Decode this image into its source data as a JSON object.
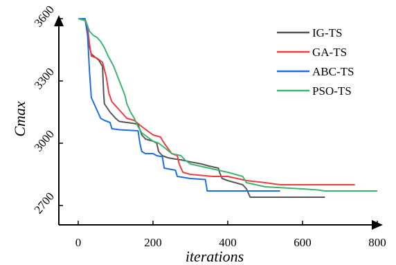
{
  "chart_data": {
    "type": "line",
    "xlabel": "iterations",
    "ylabel": "Cmax",
    "xlim": [
      0,
      800
    ],
    "ylim": [
      2700,
      3600
    ],
    "xticks": [
      0,
      200,
      400,
      600,
      800
    ],
    "yticks": [
      2700,
      3000,
      3300,
      3600
    ],
    "x_tick_labels": [
      "0",
      "200",
      "400",
      "600",
      "800"
    ],
    "y_tick_labels": [
      "2700",
      "3000",
      "3300",
      "3600"
    ],
    "grid": false,
    "legend_position": "top-right",
    "series": [
      {
        "name": "IG-TS",
        "color": "#555555",
        "points": [
          [
            0,
            3600
          ],
          [
            18,
            3600
          ],
          [
            25,
            3540
          ],
          [
            28,
            3480
          ],
          [
            35,
            3430
          ],
          [
            55,
            3400
          ],
          [
            65,
            3370
          ],
          [
            68,
            3240
          ],
          [
            70,
            3190
          ],
          [
            85,
            3150
          ],
          [
            100,
            3120
          ],
          [
            110,
            3105
          ],
          [
            130,
            3100
          ],
          [
            150,
            3095
          ],
          [
            160,
            3090
          ],
          [
            170,
            3040
          ],
          [
            180,
            3020
          ],
          [
            200,
            3010
          ],
          [
            210,
            3000
          ],
          [
            215,
            2960
          ],
          [
            225,
            2940
          ],
          [
            240,
            2930
          ],
          [
            255,
            2925
          ],
          [
            275,
            2920
          ],
          [
            300,
            2910
          ],
          [
            330,
            2900
          ],
          [
            350,
            2890
          ],
          [
            375,
            2880
          ],
          [
            378,
            2860
          ],
          [
            385,
            2830
          ],
          [
            400,
            2820
          ],
          [
            440,
            2800
          ],
          [
            450,
            2780
          ],
          [
            460,
            2740
          ],
          [
            660,
            2740
          ]
        ]
      },
      {
        "name": "GA-TS",
        "color": "#ee3b3b",
        "points": [
          [
            0,
            3600
          ],
          [
            18,
            3600
          ],
          [
            25,
            3560
          ],
          [
            30,
            3480
          ],
          [
            35,
            3420
          ],
          [
            50,
            3410
          ],
          [
            65,
            3390
          ],
          [
            75,
            3320
          ],
          [
            82,
            3240
          ],
          [
            90,
            3200
          ],
          [
            100,
            3180
          ],
          [
            110,
            3160
          ],
          [
            120,
            3140
          ],
          [
            130,
            3120
          ],
          [
            150,
            3110
          ],
          [
            170,
            3080
          ],
          [
            185,
            3060
          ],
          [
            200,
            3040
          ],
          [
            220,
            3030
          ],
          [
            230,
            3000
          ],
          [
            250,
            2950
          ],
          [
            265,
            2940
          ],
          [
            270,
            2900
          ],
          [
            275,
            2880
          ],
          [
            280,
            2860
          ],
          [
            300,
            2850
          ],
          [
            330,
            2845
          ],
          [
            360,
            2840
          ],
          [
            400,
            2840
          ],
          [
            450,
            2820
          ],
          [
            500,
            2810
          ],
          [
            540,
            2800
          ],
          [
            740,
            2800
          ]
        ]
      },
      {
        "name": "ABC-TS",
        "color": "#1e6de0",
        "points": [
          [
            0,
            3600
          ],
          [
            18,
            3600
          ],
          [
            25,
            3520
          ],
          [
            30,
            3350
          ],
          [
            35,
            3220
          ],
          [
            40,
            3200
          ],
          [
            50,
            3160
          ],
          [
            60,
            3120
          ],
          [
            70,
            3110
          ],
          [
            85,
            3100
          ],
          [
            90,
            3070
          ],
          [
            110,
            3065
          ],
          [
            160,
            3060
          ],
          [
            165,
            3000
          ],
          [
            170,
            2960
          ],
          [
            180,
            2950
          ],
          [
            200,
            2950
          ],
          [
            210,
            2940
          ],
          [
            225,
            2935
          ],
          [
            230,
            2880
          ],
          [
            260,
            2870
          ],
          [
            265,
            2840
          ],
          [
            300,
            2830
          ],
          [
            340,
            2825
          ],
          [
            345,
            2770
          ],
          [
            390,
            2770
          ],
          [
            540,
            2770
          ]
        ]
      },
      {
        "name": "PSO-TS",
        "color": "#3cb371",
        "points": [
          [
            0,
            3600
          ],
          [
            20,
            3590
          ],
          [
            30,
            3540
          ],
          [
            40,
            3520
          ],
          [
            50,
            3510
          ],
          [
            60,
            3490
          ],
          [
            70,
            3460
          ],
          [
            80,
            3420
          ],
          [
            95,
            3370
          ],
          [
            110,
            3300
          ],
          [
            125,
            3230
          ],
          [
            130,
            3190
          ],
          [
            140,
            3150
          ],
          [
            150,
            3120
          ],
          [
            160,
            3080
          ],
          [
            170,
            3050
          ],
          [
            185,
            3030
          ],
          [
            200,
            3010
          ],
          [
            215,
            3000
          ],
          [
            230,
            2980
          ],
          [
            250,
            2950
          ],
          [
            275,
            2940
          ],
          [
            285,
            2920
          ],
          [
            300,
            2900
          ],
          [
            350,
            2880
          ],
          [
            400,
            2860
          ],
          [
            440,
            2840
          ],
          [
            450,
            2810
          ],
          [
            500,
            2790
          ],
          [
            600,
            2780
          ],
          [
            640,
            2775
          ],
          [
            660,
            2770
          ],
          [
            800,
            2770
          ]
        ]
      }
    ]
  }
}
